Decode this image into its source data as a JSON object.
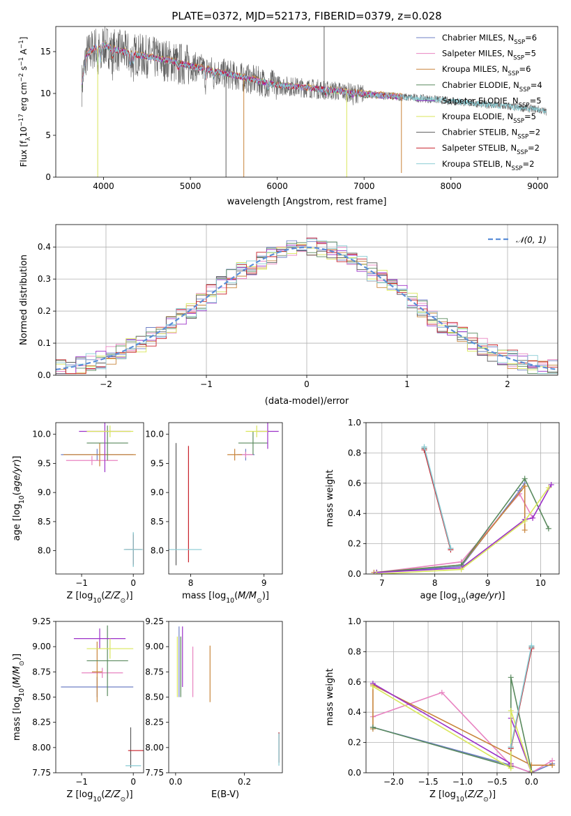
{
  "title": "PLATE=0372, MJD=52173, FIBERID=0379, z=0.028",
  "colors": [
    "#6e7fc5",
    "#e882c0",
    "#c8843a",
    "#5a8a5e",
    "#9b30c8",
    "#d9e65a",
    "#5c5c5c",
    "#c8202a",
    "#87cbd3"
  ],
  "chart_data": [
    {
      "id": "spectrum",
      "type": "line",
      "xlabel": "wavelength [Angstrom, rest frame]",
      "ylabel": "Flux [f_λ10^-17 erg cm^-2 s^-1 A^-1]",
      "xlim": [
        3450,
        9230
      ],
      "ylim": [
        0,
        18
      ],
      "xticks": [
        4000,
        5000,
        6000,
        7000,
        8000,
        9000
      ],
      "yticks": [
        0,
        5,
        10,
        15
      ],
      "grid": false,
      "legend_position": "top-right",
      "legend": [
        {
          "label": "Chabrier MILES, N",
          "sub": "SSP",
          "suffix": "=6"
        },
        {
          "label": "Salpeter MILES, N",
          "sub": "SSP",
          "suffix": "=5"
        },
        {
          "label": "Kroupa MILES, N",
          "sub": "SSP",
          "suffix": "=6"
        },
        {
          "label": "Chabrier ELODIE, N",
          "sub": "SSP",
          "suffix": "=4"
        },
        {
          "label": "Salpeter ELODIE, N",
          "sub": "SSP",
          "suffix": "=5"
        },
        {
          "label": "Kroupa ELODIE, N",
          "sub": "SSP",
          "suffix": "=5"
        },
        {
          "label": "Chabrier STELIB, N",
          "sub": "SSP",
          "suffix": "=2"
        },
        {
          "label": "Salpeter STELIB, N",
          "sub": "SSP",
          "suffix": "=2"
        },
        {
          "label": "Kroupa STELIB, N",
          "sub": "SSP",
          "suffix": "=2"
        }
      ],
      "continuum": [
        [
          3750,
          11.0
        ],
        [
          3800,
          14.5
        ],
        [
          3900,
          15.5
        ],
        [
          4000,
          15.8
        ],
        [
          4100,
          15.3
        ],
        [
          4300,
          14.8
        ],
        [
          4500,
          14.4
        ],
        [
          4800,
          13.8
        ],
        [
          5000,
          13.3
        ],
        [
          5300,
          12.6
        ],
        [
          5600,
          11.9
        ],
        [
          6000,
          11.0
        ],
        [
          6300,
          10.7
        ],
        [
          6600,
          10.4
        ],
        [
          7000,
          9.9
        ],
        [
          7400,
          9.6
        ],
        [
          7800,
          9.3
        ],
        [
          8200,
          8.9
        ],
        [
          8600,
          8.5
        ],
        [
          9000,
          8.1
        ],
        [
          9100,
          7.8
        ]
      ],
      "model_range": [
        3750,
        7450
      ],
      "data_range": [
        3750,
        9100
      ],
      "dips": [
        {
          "x": 3933,
          "y": 0,
          "series": 5
        },
        {
          "x": 5410,
          "y": 0,
          "series": 6
        },
        {
          "x": 5615,
          "y": 0,
          "series": 2
        },
        {
          "x": 6540,
          "y": 18,
          "series": 6
        },
        {
          "x": 6800,
          "y": 0,
          "series": 5
        },
        {
          "x": 7430,
          "y": 0.5,
          "series": 2
        }
      ]
    },
    {
      "id": "residuals",
      "type": "histogram",
      "xlabel": "(data-model)/error",
      "ylabel": "Normed distribution",
      "xlim": [
        -2.5,
        2.5
      ],
      "ylim": [
        0,
        0.47
      ],
      "xticks": [
        -2,
        -1,
        0,
        1,
        2
      ],
      "yticks": [
        0.0,
        0.1,
        0.2,
        0.3,
        0.4
      ],
      "grid": true,
      "bin_width": 0.1,
      "reference_label": "𝒩(0, 1)",
      "reference_color": "#5b8ed8",
      "legend_position": "top-right"
    },
    {
      "id": "age-vs-Z",
      "type": "errorbar",
      "xlabel": "Z [log10(Z/Z⊙)]",
      "ylabel": "age  [log10(age/yr)]",
      "xlim": [
        -1.5,
        0.2
      ],
      "ylim": [
        7.6,
        10.2
      ],
      "xticks": [
        -1,
        0
      ],
      "yticks": [
        8.0,
        8.5,
        9.0,
        9.5,
        10.0
      ],
      "points": [
        {
          "series": 0,
          "x": -0.7,
          "xerr": 0.7,
          "y": 9.65,
          "yerr": 0.1
        },
        {
          "series": 1,
          "x": -0.8,
          "xerr": 0.5,
          "y": 9.55,
          "yerr": 0.08
        },
        {
          "series": 2,
          "x": -0.65,
          "xerr": 0.7,
          "y": 9.65,
          "yerr": 0.2
        },
        {
          "series": 3,
          "x": -0.5,
          "xerr": 0.4,
          "y": 9.85,
          "yerr": 0.3
        },
        {
          "series": 4,
          "x": -0.55,
          "xerr": 0.5,
          "y": 10.05,
          "yerr": 0.7
        },
        {
          "series": 5,
          "x": -0.45,
          "xerr": 0.45,
          "y": 10.05,
          "yerr": 0.1
        },
        {
          "series": 6,
          "x": 0.0,
          "xerr": 0.18,
          "y": 8.02,
          "yerr": 0.28
        },
        {
          "series": 7,
          "x": 0.0,
          "xerr": 0.15,
          "y": 8.02,
          "yerr": 0.25
        },
        {
          "series": 8,
          "x": 0.0,
          "xerr": 0.18,
          "y": 8.02,
          "yerr": 0.3
        }
      ]
    },
    {
      "id": "age-vs-mass",
      "type": "errorbar",
      "xlabel": "mass [log10(M/M⊙)]",
      "ylabel": "",
      "xlim": [
        7.7,
        9.25
      ],
      "ylim": [
        7.6,
        10.2
      ],
      "xticks": [
        8,
        9
      ],
      "yticks": [
        8.0,
        8.5,
        9.0,
        9.5,
        10.0
      ],
      "points": [
        {
          "series": 0,
          "x": 8.75,
          "xerr": 0.12,
          "y": 9.65,
          "yerr": 0.1
        },
        {
          "series": 1,
          "x": 8.75,
          "xerr": 0.1,
          "y": 9.65,
          "yerr": 0.05
        },
        {
          "series": 2,
          "x": 8.6,
          "xerr": 0.1,
          "y": 9.65,
          "yerr": 0.1
        },
        {
          "series": 3,
          "x": 8.85,
          "xerr": 0.2,
          "y": 9.85,
          "yerr": 0.2
        },
        {
          "series": 4,
          "x": 9.05,
          "xerr": 0.15,
          "y": 10.05,
          "yerr": 0.3
        },
        {
          "series": 5,
          "x": 8.9,
          "xerr": 0.15,
          "y": 10.05,
          "yerr": 0.1
        },
        {
          "series": 6,
          "x": 7.8,
          "xerr": 0.0,
          "y": 8.8,
          "yerr": 1.05
        },
        {
          "series": 7,
          "x": 7.97,
          "xerr": 0.0,
          "y": 8.8,
          "yerr": 1.0
        },
        {
          "series": 8,
          "x": 7.9,
          "xerr": 0.25,
          "y": 8.02,
          "yerr": 0.0
        }
      ]
    },
    {
      "id": "massweight-vs-age",
      "type": "line",
      "xlabel": "age  [log10(age/yr)]",
      "ylabel": "mass weight",
      "xlim": [
        6.7,
        10.35
      ],
      "ylim": [
        0,
        1.0
      ],
      "xticks": [
        7,
        8,
        9,
        10
      ],
      "yticks": [
        0.0,
        0.2,
        0.4,
        0.6,
        0.8,
        1.0
      ],
      "grid": true,
      "series": [
        {
          "series": 0,
          "points": [
            [
              6.9,
              0.01
            ],
            [
              8.5,
              0.05
            ],
            [
              9.6,
              0.55
            ],
            [
              9.7,
              0.6
            ]
          ]
        },
        {
          "series": 1,
          "points": [
            [
              6.9,
              0.01
            ],
            [
              8.5,
              0.08
            ],
            [
              9.6,
              0.53
            ],
            [
              9.85,
              0.37
            ]
          ]
        },
        {
          "series": 2,
          "points": [
            [
              6.85,
              0.01
            ],
            [
              8.5,
              0.06
            ],
            [
              9.7,
              0.58
            ],
            [
              9.7,
              0.29
            ]
          ]
        },
        {
          "series": 3,
          "points": [
            [
              6.9,
              0.01
            ],
            [
              8.5,
              0.06
            ],
            [
              9.7,
              0.63
            ],
            [
              10.15,
              0.3
            ]
          ]
        },
        {
          "series": 4,
          "points": [
            [
              6.9,
              0.01
            ],
            [
              8.5,
              0.04
            ],
            [
              9.7,
              0.36
            ],
            [
              9.85,
              0.37
            ],
            [
              10.2,
              0.59
            ]
          ]
        },
        {
          "series": 5,
          "points": [
            [
              6.9,
              0.0
            ],
            [
              8.5,
              0.03
            ],
            [
              9.7,
              0.35
            ],
            [
              10.15,
              0.57
            ]
          ]
        },
        {
          "series": 6,
          "points": [
            [
              7.8,
              0.83
            ],
            [
              8.3,
              0.17
            ]
          ]
        },
        {
          "series": 7,
          "points": [
            [
              7.8,
              0.82
            ],
            [
              8.3,
              0.16
            ]
          ]
        },
        {
          "series": 8,
          "points": [
            [
              7.8,
              0.84
            ],
            [
              8.3,
              0.17
            ]
          ]
        }
      ]
    },
    {
      "id": "mass-vs-Z",
      "type": "errorbar",
      "xlabel": "Z [log10(Z/Z⊙)]",
      "ylabel": "mass [log10(M/M⊙)]",
      "xlim": [
        -1.5,
        0.2
      ],
      "ylim": [
        7.75,
        9.25
      ],
      "xticks": [
        -1,
        0
      ],
      "yticks": [
        7.75,
        8.0,
        8.25,
        8.5,
        8.75,
        9.0,
        9.25
      ],
      "points": [
        {
          "series": 0,
          "x": -0.7,
          "xerr": 0.7,
          "y": 8.6,
          "yerr": 0.1
        },
        {
          "series": 1,
          "x": -0.6,
          "xerr": 0.4,
          "y": 8.74,
          "yerr": 0.05
        },
        {
          "series": 2,
          "x": -0.7,
          "xerr": 0.1,
          "y": 8.75,
          "yerr": 0.3
        },
        {
          "series": 3,
          "x": -0.5,
          "xerr": 0.4,
          "y": 8.86,
          "yerr": 0.35
        },
        {
          "series": 4,
          "x": -0.65,
          "xerr": 0.5,
          "y": 9.08,
          "yerr": 0.1
        },
        {
          "series": 5,
          "x": -0.45,
          "xerr": 0.45,
          "y": 8.98,
          "yerr": 0.1
        },
        {
          "series": 6,
          "x": -0.05,
          "xerr": 0.0,
          "y": 8.0,
          "yerr": 0.2
        },
        {
          "series": 7,
          "x": 0.05,
          "xerr": 0.15,
          "y": 7.97,
          "yerr": 0.0
        },
        {
          "series": 8,
          "x": 0.0,
          "xerr": 0.15,
          "y": 7.82,
          "yerr": 0.0
        }
      ]
    },
    {
      "id": "mass-vs-ebv",
      "type": "errorbar",
      "xlabel": "E(B-V)",
      "ylabel": "",
      "xlim": [
        -0.02,
        0.31
      ],
      "ylim": [
        7.75,
        9.25
      ],
      "xticks": [
        0.0,
        0.2
      ],
      "yticks": [
        7.75,
        8.0,
        8.25,
        8.5,
        8.75,
        9.0,
        9.25
      ],
      "points": [
        {
          "series": 0,
          "x": 0.01,
          "xerr": 0.0,
          "y": 8.85,
          "yerr": 0.35
        },
        {
          "series": 1,
          "x": 0.05,
          "xerr": 0.0,
          "y": 8.75,
          "yerr": 0.25
        },
        {
          "series": 2,
          "x": 0.1,
          "xerr": 0.0,
          "y": 8.73,
          "yerr": 0.28
        },
        {
          "series": 3,
          "x": 0.015,
          "xerr": 0.0,
          "y": 8.8,
          "yerr": 0.3
        },
        {
          "series": 4,
          "x": 0.02,
          "xerr": 0.0,
          "y": 8.9,
          "yerr": 0.3
        },
        {
          "series": 5,
          "x": 0.005,
          "xerr": 0.0,
          "y": 8.8,
          "yerr": 0.3
        },
        {
          "series": 6,
          "x": 0.3,
          "xerr": 0.0,
          "y": 8.0,
          "yerr": 0.15
        },
        {
          "series": 7,
          "x": 0.3,
          "xerr": 0.0,
          "y": 8.0,
          "yerr": 0.15
        },
        {
          "series": 8,
          "x": 0.3,
          "xerr": 0.0,
          "y": 7.98,
          "yerr": 0.16
        }
      ]
    },
    {
      "id": "massweight-vs-Z",
      "type": "line",
      "xlabel": "Z [log10(Z/Z⊙)]",
      "ylabel": "mass weight",
      "xlim": [
        -2.4,
        0.4
      ],
      "ylim": [
        0,
        1.0
      ],
      "xticks": [
        -2.0,
        -1.5,
        -1.0,
        -0.5,
        0.0
      ],
      "yticks": [
        0.0,
        0.2,
        0.4,
        0.6,
        0.8,
        1.0
      ],
      "grid": true,
      "series": [
        {
          "series": 0,
          "points": [
            [
              -2.3,
              0.3
            ],
            [
              -0.3,
              0.05
            ],
            [
              0.0,
              0.0
            ],
            [
              0.3,
              0.06
            ]
          ]
        },
        {
          "series": 1,
          "points": [
            [
              -2.3,
              0.37
            ],
            [
              -1.3,
              0.53
            ],
            [
              -0.3,
              0.05
            ],
            [
              0.0,
              0.0
            ],
            [
              0.3,
              0.08
            ]
          ]
        },
        {
          "series": 2,
          "points": [
            [
              -2.3,
              0.29
            ],
            [
              -2.3,
              0.58
            ],
            [
              0.0,
              0.05
            ],
            [
              0.3,
              0.05
            ]
          ]
        },
        {
          "series": 3,
          "points": [
            [
              -2.3,
              0.3
            ],
            [
              -0.3,
              0.04
            ],
            [
              -0.3,
              0.63
            ],
            [
              0.0,
              0.01
            ]
          ]
        },
        {
          "series": 4,
          "points": [
            [
              -2.3,
              0.59
            ],
            [
              -0.3,
              0.06
            ],
            [
              -0.3,
              0.36
            ],
            [
              0.0,
              0.0
            ]
          ]
        },
        {
          "series": 5,
          "points": [
            [
              -2.3,
              0.57
            ],
            [
              -0.3,
              0.03
            ],
            [
              -0.3,
              0.41
            ],
            [
              0.0,
              0.0
            ]
          ]
        },
        {
          "series": 6,
          "points": [
            [
              -0.3,
              0.17
            ],
            [
              0.0,
              0.83
            ]
          ]
        },
        {
          "series": 7,
          "points": [
            [
              -0.3,
              0.16
            ],
            [
              0.0,
              0.82
            ]
          ]
        },
        {
          "series": 8,
          "points": [
            [
              -0.3,
              0.17
            ],
            [
              0.0,
              0.84
            ]
          ]
        }
      ]
    }
  ]
}
